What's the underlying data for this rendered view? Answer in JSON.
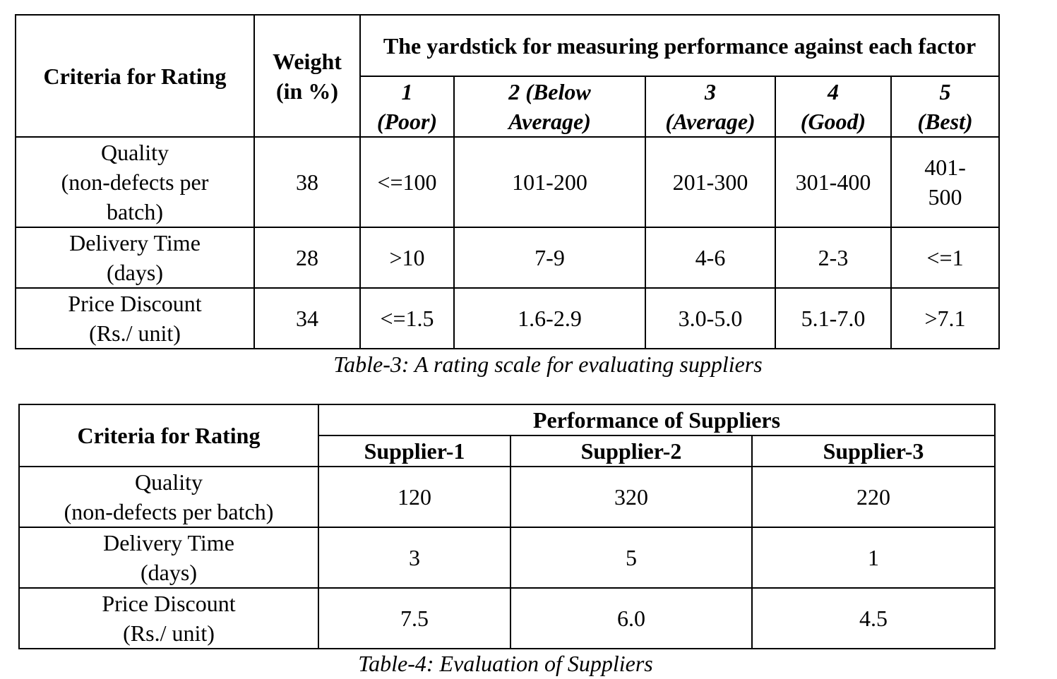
{
  "table3": {
    "header": {
      "criteria": "Criteria for Rating",
      "weight_line1": "Weight",
      "weight_line2": "(in %)",
      "yardstick": "The yardstick for measuring performance against each factor",
      "scale": [
        {
          "num": "1",
          "label": "(Poor)"
        },
        {
          "num": "2 (Below",
          "label": "Average)"
        },
        {
          "num": "3",
          "label": "(Average)"
        },
        {
          "num": "4",
          "label": "(Good)"
        },
        {
          "num": "5",
          "label": "(Best)"
        }
      ]
    },
    "rows": [
      {
        "criteria_line1": "Quality",
        "criteria_line2": "(non-defects per",
        "criteria_line3": "batch)",
        "weight": "38",
        "cells": [
          "<=100",
          "101-200",
          "201-300",
          "301-400",
          "401-",
          "500"
        ]
      },
      {
        "criteria_line1": "Delivery Time",
        "criteria_line2": "(days)",
        "weight": "28",
        "cells": [
          ">10",
          "7-9",
          "4-6",
          "2-3",
          "<=1"
        ]
      },
      {
        "criteria_line1": "Price Discount",
        "criteria_line2": "(Rs./ unit)",
        "weight": "34",
        "cells": [
          "<=1.5",
          "1.6-2.9",
          "3.0-5.0",
          "5.1-7.0",
          ">7.1"
        ]
      }
    ],
    "caption": "Table-3: A rating scale for evaluating suppliers"
  },
  "table4": {
    "header": {
      "criteria": "Criteria for Rating",
      "performance": "Performance of Suppliers",
      "suppliers": [
        "Supplier-1",
        "Supplier-2",
        "Supplier-3"
      ]
    },
    "rows": [
      {
        "criteria_line1": "Quality",
        "criteria_line2": "(non-defects per batch)",
        "values": [
          "120",
          "320",
          "220"
        ]
      },
      {
        "criteria_line1": "Delivery Time",
        "criteria_line2": "(days)",
        "values": [
          "3",
          "5",
          "1"
        ]
      },
      {
        "criteria_line1": "Price Discount",
        "criteria_line2": "(Rs./ unit)",
        "values": [
          "7.5",
          "6.0",
          "4.5"
        ]
      }
    ],
    "caption": "Table-4: Evaluation of Suppliers"
  }
}
